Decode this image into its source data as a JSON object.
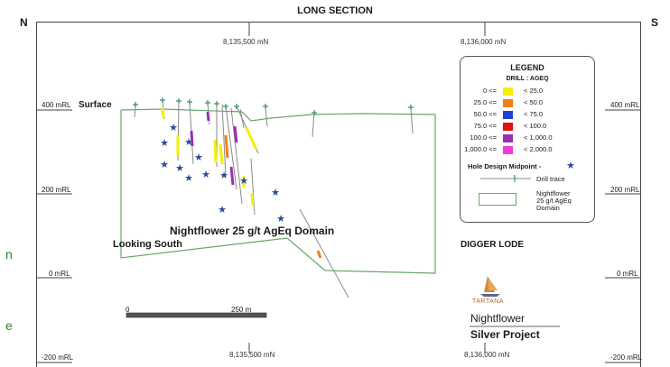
{
  "header": {
    "title": "LONG SECTION",
    "left_compass": "N",
    "right_compass": "S"
  },
  "northings": {
    "top_left": "8,135,500 mN",
    "top_right": "8,136,000 mN",
    "bottom_left": "8,135,500 mN",
    "bottom_right": "8,136,000 mN"
  },
  "levels": {
    "rl_400": "400 mRL",
    "rl_200": "200 mRL",
    "rl_0": "0 mRL",
    "rl_neg200": "-200 mRL"
  },
  "labels": {
    "surface": "Surface",
    "domain": "Nightflower 25 g/t AgEq Domain",
    "looking": "Looking South",
    "digger": "DIGGER LODE",
    "scale_start": "0",
    "scale_end": "250 m"
  },
  "legend": {
    "title": "LEGEND",
    "subtitle": "DRILL : AGEQ",
    "rows": [
      {
        "low": "0 <=",
        "high": "< 25.0",
        "color": "#f5f000"
      },
      {
        "low": "25.0 <=",
        "high": "< 50.0",
        "color": "#f07f18"
      },
      {
        "low": "50.0 <=",
        "high": "< 75.0",
        "color": "#1f3fd6"
      },
      {
        "low": "75.0 <=",
        "high": "< 100.0",
        "color": "#e01010"
      },
      {
        "low": "100.0 <=",
        "high": "< 1,000.0",
        "color": "#9a2fb4"
      },
      {
        "low": "1,000.0 <=",
        "high": "< 2,000.0",
        "color": "#f23ad8"
      }
    ],
    "midpoint": "Hole Design Midpoint -",
    "drill_trace": "Drill trace",
    "domain_line1": "Nightflower",
    "domain_line2": "25 g/t AgEq",
    "domain_line3": "Domain"
  },
  "branding": {
    "logo_text": "TARTANA",
    "project_line1": "Nightflower",
    "project_line2": "Silver Project"
  },
  "cut_text": {
    "a": "n",
    "b": "e"
  },
  "colors": {
    "domain_outline": "#6aa56a",
    "drill_trace": "#8a8a8a",
    "star": "#2b4a9e",
    "collar": "#3a8a6a"
  }
}
